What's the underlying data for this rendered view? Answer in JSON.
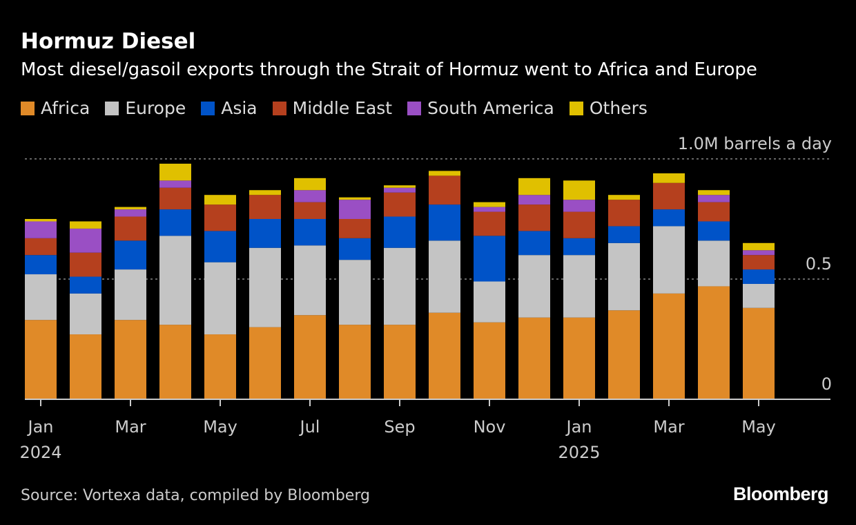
{
  "header": {
    "title": "Hormuz Diesel",
    "subtitle": "Most diesel/gasoil exports through the Strait of Hormuz went to Africa and Europe"
  },
  "footer": {
    "source": "Source: Vortexa data, compiled by Bloomberg",
    "logo": "Bloomberg"
  },
  "chart_data": {
    "type": "bar",
    "stacked": true,
    "title": "Hormuz Diesel",
    "ylabel": "M barrels a day",
    "ylim": [
      0,
      1.0
    ],
    "y_ticks": [
      {
        "value": 0,
        "label": "0"
      },
      {
        "value": 0.5,
        "label": "0.5"
      },
      {
        "value": 1.0,
        "label": "1.0M barrels a day"
      }
    ],
    "categories": [
      "Jan 2024",
      "Feb 2024",
      "Mar 2024",
      "Apr 2024",
      "May 2024",
      "Jun 2024",
      "Jul 2024",
      "Aug 2024",
      "Sep 2024",
      "Oct 2024",
      "Nov 2024",
      "Dec 2024",
      "Jan 2025",
      "Feb 2025",
      "Mar 2025",
      "Apr 2025",
      "May 2025"
    ],
    "x_ticks": [
      {
        "index": 0,
        "label": "Jan",
        "year": "2024"
      },
      {
        "index": 2,
        "label": "Mar"
      },
      {
        "index": 4,
        "label": "May"
      },
      {
        "index": 6,
        "label": "Jul"
      },
      {
        "index": 8,
        "label": "Sep"
      },
      {
        "index": 10,
        "label": "Nov"
      },
      {
        "index": 12,
        "label": "Jan",
        "year": "2025"
      },
      {
        "index": 14,
        "label": "Mar"
      },
      {
        "index": 16,
        "label": "May"
      }
    ],
    "series": [
      {
        "name": "Africa",
        "color": "#e08a28",
        "values": [
          0.33,
          0.27,
          0.33,
          0.31,
          0.27,
          0.3,
          0.35,
          0.31,
          0.31,
          0.36,
          0.32,
          0.34,
          0.34,
          0.37,
          0.44,
          0.47,
          0.38
        ]
      },
      {
        "name": "Europe",
        "color": "#c4c4c4",
        "values": [
          0.19,
          0.17,
          0.21,
          0.37,
          0.3,
          0.33,
          0.29,
          0.27,
          0.32,
          0.3,
          0.17,
          0.26,
          0.26,
          0.28,
          0.28,
          0.19,
          0.1
        ]
      },
      {
        "name": "Asia",
        "color": "#0053c8",
        "values": [
          0.08,
          0.07,
          0.12,
          0.11,
          0.13,
          0.12,
          0.11,
          0.09,
          0.13,
          0.15,
          0.19,
          0.1,
          0.07,
          0.07,
          0.07,
          0.08,
          0.06
        ]
      },
      {
        "name": "Middle East",
        "color": "#b5401e",
        "values": [
          0.07,
          0.1,
          0.1,
          0.09,
          0.11,
          0.1,
          0.07,
          0.08,
          0.1,
          0.12,
          0.1,
          0.11,
          0.11,
          0.11,
          0.11,
          0.08,
          0.06
        ]
      },
      {
        "name": "South America",
        "color": "#9a4fc4",
        "values": [
          0.07,
          0.1,
          0.03,
          0.03,
          0.0,
          0.0,
          0.05,
          0.08,
          0.02,
          0.0,
          0.02,
          0.04,
          0.05,
          0.0,
          0.0,
          0.03,
          0.02
        ]
      },
      {
        "name": "Others",
        "color": "#e0c000",
        "values": [
          0.01,
          0.03,
          0.01,
          0.07,
          0.04,
          0.02,
          0.05,
          0.01,
          0.01,
          0.02,
          0.02,
          0.07,
          0.08,
          0.02,
          0.04,
          0.02,
          0.03
        ]
      }
    ],
    "grid": true,
    "legend_position": "top-left"
  }
}
